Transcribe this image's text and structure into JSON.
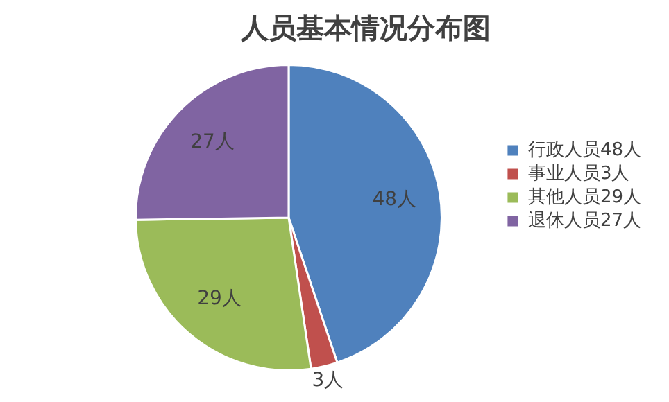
{
  "chart_data": {
    "type": "pie",
    "title": "人员基本情况分布图",
    "categories": [
      "行政人员48人",
      "事业人员3人",
      "其他人员29人",
      "退休人员27人"
    ],
    "values": [
      48,
      3,
      29,
      27
    ],
    "colors": [
      "#4f81bd",
      "#c0504d",
      "#9bbb59",
      "#8064a2"
    ],
    "value_labels": [
      "48人",
      "3人",
      "29人",
      "27人"
    ],
    "legend": "right"
  }
}
